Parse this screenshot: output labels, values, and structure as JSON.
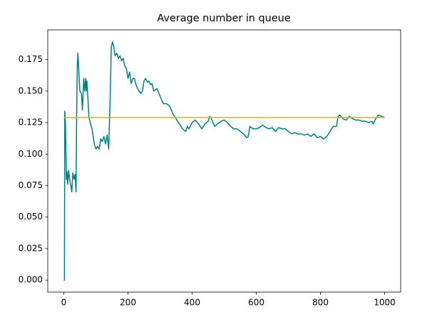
{
  "chart_data": {
    "type": "line",
    "title": "Average number in queue",
    "xlim": [
      -50,
      1050
    ],
    "ylim": [
      -0.0095,
      0.1985
    ],
    "xticks": [
      0,
      200,
      400,
      600,
      800,
      1000
    ],
    "yticks": [
      {
        "value": 0,
        "label": "0.000"
      },
      {
        "value": 0.025,
        "label": "0.025"
      },
      {
        "value": 0.05,
        "label": "0.050"
      },
      {
        "value": 0.075,
        "label": "0.075"
      },
      {
        "value": 0.1,
        "label": "0.100"
      },
      {
        "value": 0.125,
        "label": "0.125"
      },
      {
        "value": 0.15,
        "label": "0.150"
      },
      {
        "value": 0.175,
        "label": "0.175"
      }
    ],
    "grid": false,
    "series": [
      {
        "color": "#008080",
        "x": [
          0,
          2,
          3,
          5,
          8,
          10,
          12,
          15,
          18,
          22,
          25,
          28,
          32,
          35,
          38,
          40,
          42,
          44,
          47,
          50,
          55,
          58,
          62,
          65,
          68,
          70,
          72,
          75,
          78,
          82,
          88,
          95,
          100,
          105,
          110,
          115,
          120,
          125,
          130,
          135,
          140,
          145,
          148,
          152,
          156,
          160,
          165,
          170,
          175,
          180,
          185,
          190,
          195,
          200,
          205,
          210,
          215,
          220,
          225,
          230,
          235,
          240,
          245,
          250,
          255,
          260,
          265,
          270,
          275,
          280,
          290,
          300,
          310,
          320,
          330,
          340,
          350,
          360,
          370,
          380,
          385,
          390,
          400,
          410,
          420,
          430,
          440,
          450,
          455,
          460,
          470,
          480,
          490,
          500,
          510,
          520,
          530,
          540,
          550,
          560,
          570,
          575,
          580,
          590,
          600,
          610,
          620,
          630,
          640,
          650,
          660,
          670,
          680,
          690,
          700,
          710,
          720,
          730,
          740,
          750,
          760,
          770,
          780,
          790,
          800,
          810,
          820,
          830,
          840,
          850,
          855,
          860,
          870,
          880,
          890,
          900,
          910,
          920,
          930,
          940,
          950,
          960,
          965,
          970,
          980,
          990,
          1000
        ],
        "values": [
          0,
          0,
          0.134,
          0.125,
          0.08,
          0.086,
          0.076,
          0.087,
          0.08,
          0.075,
          0.07,
          0.085,
          0.08,
          0.084,
          0.07,
          0.13,
          0.17,
          0.18,
          0.165,
          0.15,
          0.148,
          0.135,
          0.16,
          0.15,
          0.16,
          0.15,
          0.158,
          0.145,
          0.13,
          0.125,
          0.12,
          0.108,
          0.104,
          0.106,
          0.104,
          0.112,
          0.11,
          0.114,
          0.108,
          0.115,
          0.104,
          0.15,
          0.185,
          0.189,
          0.185,
          0.178,
          0.18,
          0.176,
          0.178,
          0.174,
          0.176,
          0.17,
          0.168,
          0.16,
          0.165,
          0.156,
          0.16,
          0.16,
          0.155,
          0.152,
          0.15,
          0.148,
          0.15,
          0.158,
          0.16,
          0.157,
          0.158,
          0.155,
          0.156,
          0.15,
          0.152,
          0.146,
          0.14,
          0.14,
          0.138,
          0.132,
          0.128,
          0.124,
          0.12,
          0.118,
          0.122,
          0.12,
          0.125,
          0.127,
          0.124,
          0.12,
          0.124,
          0.126,
          0.13,
          0.128,
          0.122,
          0.124,
          0.126,
          0.127,
          0.125,
          0.122,
          0.12,
          0.12,
          0.118,
          0.116,
          0.113,
          0.114,
          0.122,
          0.12,
          0.12,
          0.121,
          0.123,
          0.121,
          0.12,
          0.121,
          0.118,
          0.121,
          0.12,
          0.12,
          0.118,
          0.116,
          0.117,
          0.116,
          0.116,
          0.115,
          0.116,
          0.114,
          0.116,
          0.113,
          0.114,
          0.112,
          0.114,
          0.118,
          0.122,
          0.122,
          0.13,
          0.131,
          0.128,
          0.127,
          0.13,
          0.128,
          0.127,
          0.127,
          0.126,
          0.126,
          0.125,
          0.126,
          0.124,
          0.127,
          0.131,
          0.13,
          0.129
        ]
      },
      {
        "color": "#ffa500",
        "x": [
          0,
          1000
        ],
        "values": [
          0.129,
          0.129
        ]
      }
    ]
  }
}
